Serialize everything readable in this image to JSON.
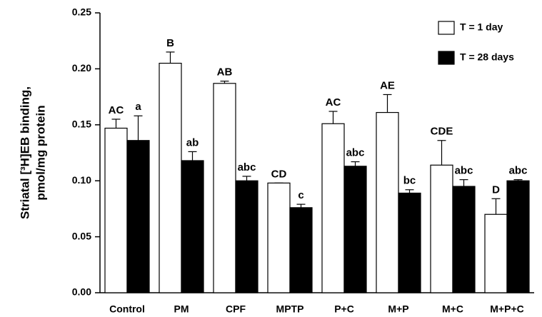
{
  "chart_data": {
    "type": "bar",
    "y_label": [
      "Striatal [³H]EB binding,",
      "pmol/mg protein"
    ],
    "categories": [
      "Control",
      "PM",
      "CPF",
      "MPTP",
      "P+C",
      "M+P",
      "M+C",
      "M+P+C"
    ],
    "series": [
      {
        "name": "T = 1 day",
        "color": "#ffffff",
        "values": [
          0.147,
          0.205,
          0.187,
          0.098,
          0.151,
          0.161,
          0.114,
          0.07
        ],
        "errors": [
          0.008,
          0.01,
          0.002,
          0,
          0.011,
          0.016,
          0.022,
          0.014
        ],
        "annotations": [
          "AC",
          "B",
          "AB",
          "CD",
          "AC",
          "AE",
          "CDE",
          "D"
        ]
      },
      {
        "name": "T = 28 days",
        "color": "#000000",
        "values": [
          0.136,
          0.118,
          0.1,
          0.076,
          0.113,
          0.089,
          0.095,
          0.1
        ],
        "errors": [
          0.022,
          0.008,
          0.004,
          0.003,
          0.004,
          0.003,
          0.006,
          0.001
        ],
        "annotations": [
          "a",
          "ab",
          "abc",
          "c",
          "abc",
          "bc",
          "abc",
          "abc"
        ]
      }
    ],
    "ylim": [
      0,
      0.25
    ],
    "yticks": [
      {
        "value": 0,
        "label": "0.00"
      },
      0.05,
      {
        "value": 0.1,
        "label": "0.10"
      },
      0.15,
      {
        "value": 0.2,
        "label": "0.20"
      },
      0.25
    ],
    "legend": "top-right"
  }
}
